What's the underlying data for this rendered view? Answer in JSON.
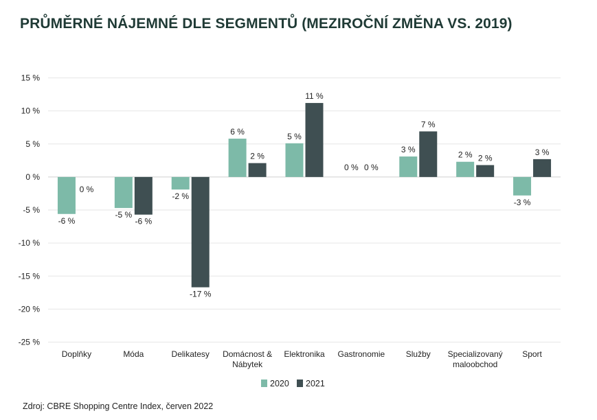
{
  "title": "PRŮMĚRNÉ NÁJEMNÉ DLE SEGMENTŮ (MEZIROČNÍ ZMĚNA VS. 2019)",
  "source": "Zdroj: CBRE Shopping Centre Index, červen 2022",
  "colors": {
    "2020": "#7dbaa8",
    "2021": "#3f4f52"
  },
  "chart_data": {
    "type": "bar",
    "title": "PRŮMĚRNÉ NÁJEMNÉ DLE SEGMENTŮ (MEZIROČNÍ ZMĚNA VS. 2019)",
    "xlabel": "",
    "ylabel": "",
    "ylim": [
      -25,
      15
    ],
    "yticks": [
      15,
      10,
      5,
      0,
      -5,
      -10,
      -15,
      -20,
      -25
    ],
    "ytick_labels": [
      "15 %",
      "10 %",
      "5 %",
      "0 %",
      "-5 %",
      "-10 %",
      "-15 %",
      "-20 %",
      "-25 %"
    ],
    "grid": true,
    "legend_position": "bottom",
    "categories": [
      [
        "Doplňky"
      ],
      [
        "Móda"
      ],
      [
        "Delikatesy"
      ],
      [
        "Domácnost &",
        "Nábytek"
      ],
      [
        "Elektronika"
      ],
      [
        "Gastronomie"
      ],
      [
        "Služby"
      ],
      [
        "Specializovaný",
        "maloobchod"
      ],
      [
        "Sport"
      ]
    ],
    "series": [
      {
        "name": "2020",
        "values": [
          -5.6,
          -4.7,
          -1.9,
          5.8,
          5.1,
          0,
          3.1,
          2.3,
          -2.8
        ],
        "labels": [
          "-6 %",
          "-5 %",
          "-2 %",
          "6 %",
          "5 %",
          "0 %",
          "3 %",
          "2 %",
          "-3 %"
        ]
      },
      {
        "name": "2021",
        "values": [
          0,
          -5.7,
          -16.7,
          2.1,
          11.2,
          0,
          6.9,
          1.8,
          2.7
        ],
        "labels": [
          "0 %",
          "-6 %",
          "-17 %",
          "2 %",
          "11 %",
          "0 %",
          "7 %",
          "2 %",
          "3 %"
        ]
      }
    ]
  }
}
